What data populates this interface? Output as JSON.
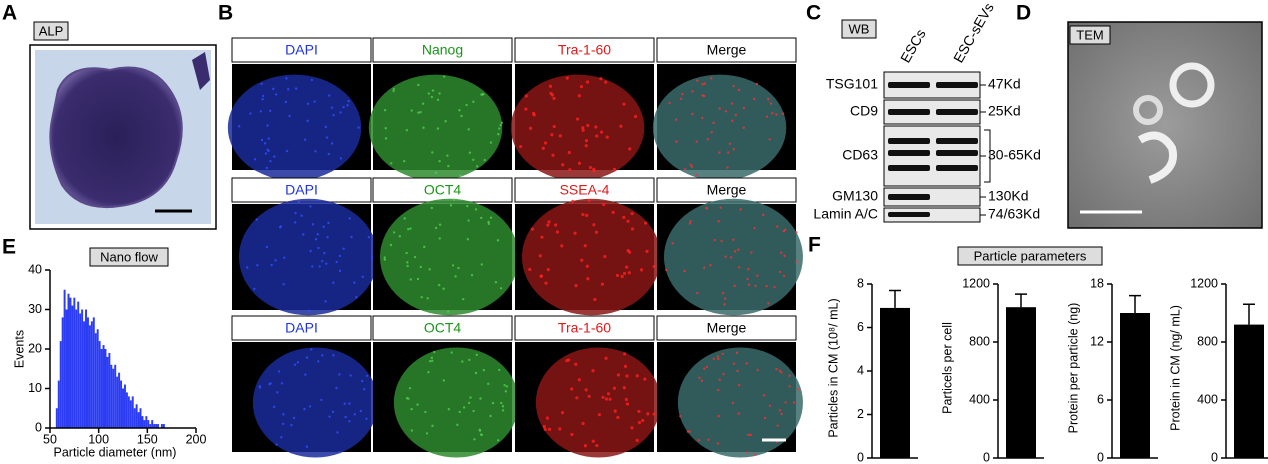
{
  "panels": {
    "a": {
      "letter": "A",
      "tag": "ALP"
    },
    "b": {
      "letter": "B",
      "rows": [
        [
          "DAPI",
          "Nanog",
          "Tra-1-60",
          "Merge"
        ],
        [
          "DAPI",
          "OCT4",
          "SSEA-4",
          "Merge"
        ],
        [
          "DAPI",
          "OCT4",
          "Tra-1-60",
          "Merge"
        ]
      ],
      "label_colors": [
        "#2035e0",
        "#1a961a",
        "#e31a1c",
        "#000000"
      ]
    },
    "c": {
      "letter": "C",
      "tag": "WB",
      "lanes": [
        "ESCs",
        "ESC-sEVs"
      ],
      "bands": [
        {
          "name": "TSG101",
          "size": "47Kd"
        },
        {
          "name": "CD9",
          "size": "25Kd"
        },
        {
          "name": "CD63",
          "size": "30-65Kd"
        },
        {
          "name": "GM130",
          "size": "130Kd"
        },
        {
          "name": "Lamin A/C",
          "size": "74/63Kd"
        }
      ]
    },
    "d": {
      "letter": "D",
      "tag": "TEM"
    },
    "e": {
      "letter": "E"
    },
    "f": {
      "letter": "F",
      "title": "Particle parameters"
    }
  },
  "chart_data": [
    {
      "type": "histogram",
      "title": "Nano flow",
      "x_label": "Particle diameter (nm)",
      "y_label": "Events",
      "color": "#2b3cf2",
      "bins": [
        56,
        58,
        60,
        62,
        64,
        66,
        68,
        70,
        72,
        74,
        76,
        78,
        80,
        82,
        84,
        86,
        88,
        90,
        92,
        94,
        96,
        98,
        100,
        102,
        104,
        106,
        108,
        110,
        112,
        114,
        116,
        118,
        120,
        122,
        124,
        126,
        128,
        130,
        132,
        134,
        136,
        138,
        140,
        142,
        144,
        146,
        148,
        150,
        152,
        154,
        156,
        158,
        160,
        162,
        164,
        166,
        168
      ],
      "values": [
        5,
        12,
        22,
        28,
        35,
        30,
        34,
        33,
        31,
        33,
        30,
        32,
        29,
        30,
        27,
        30,
        28,
        26,
        27,
        28,
        24,
        25,
        22,
        20,
        21,
        20,
        18,
        19,
        16,
        15,
        16,
        13,
        14,
        12,
        10,
        11,
        9,
        8,
        7,
        8,
        5,
        6,
        4,
        5,
        3,
        2,
        3,
        2,
        1,
        2,
        1,
        1,
        1,
        0,
        1,
        1
      ],
      "xlim": [
        50,
        200
      ],
      "xticks": [
        50,
        100,
        150,
        200
      ],
      "ylim": [
        0,
        40
      ],
      "yticks": [
        0,
        10,
        20,
        30,
        40
      ]
    },
    {
      "type": "bar",
      "y_label": "Particles in CM (10⁸/ mL)",
      "color": "#000000",
      "values": [
        6.9
      ],
      "errors": [
        0.8
      ],
      "ylim": [
        0,
        8
      ],
      "yticks": [
        0,
        2,
        4,
        6,
        8
      ]
    },
    {
      "type": "bar",
      "y_label": "Particels per cell",
      "color": "#000000",
      "values": [
        1040
      ],
      "errors": [
        90
      ],
      "ylim": [
        0,
        1200
      ],
      "yticks": [
        0,
        400,
        800,
        1200
      ]
    },
    {
      "type": "bar",
      "y_label": "Protein per particle (ng)",
      "color": "#000000",
      "values": [
        15
      ],
      "errors": [
        1.8
      ],
      "ylim": [
        0,
        18
      ],
      "yticks": [
        0,
        6,
        12,
        18
      ]
    },
    {
      "type": "bar",
      "y_label": "Protein in CM (ng/ mL)",
      "color": "#000000",
      "values": [
        920
      ],
      "errors": [
        140
      ],
      "ylim": [
        0,
        1200
      ],
      "yticks": [
        0,
        400,
        800,
        1200
      ]
    }
  ]
}
